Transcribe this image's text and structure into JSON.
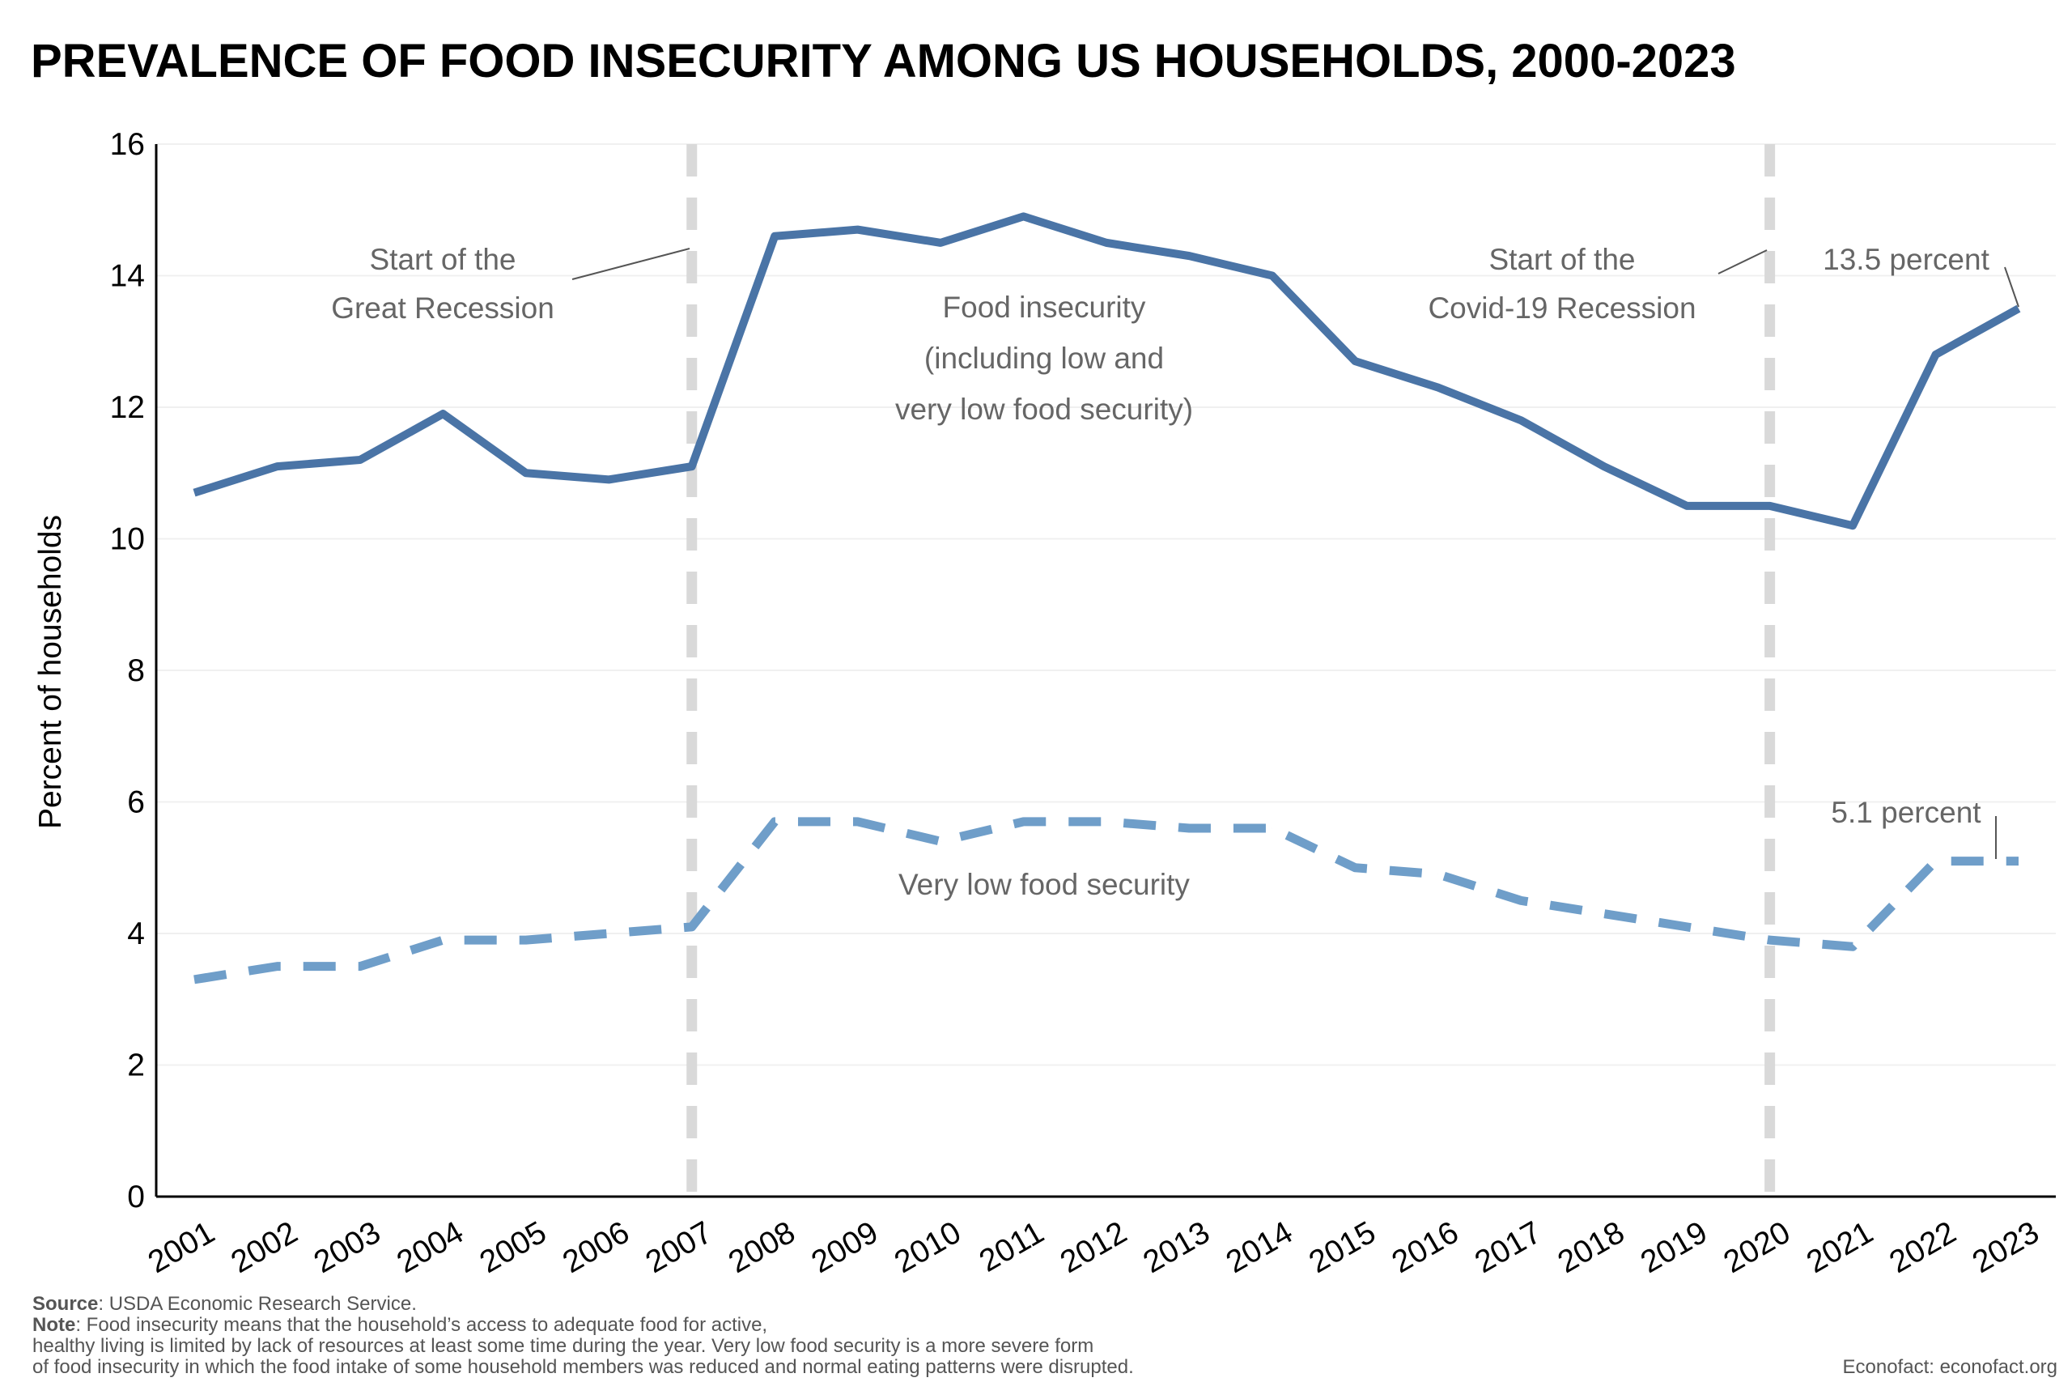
{
  "chart_data": {
    "type": "line",
    "title": "PREVALENCE OF FOOD INSECURITY AMONG US HOUSEHOLDS, 2000-2023",
    "xlabel": "",
    "ylabel": "Percent of households",
    "ylim": [
      0,
      16
    ],
    "yticks": [
      "0",
      "2",
      "4",
      "6",
      "8",
      "10",
      "12",
      "14",
      "16"
    ],
    "grid": "horizontal, light",
    "categories": [
      "2001",
      "2002",
      "2003",
      "2004",
      "2005",
      "2006",
      "2007",
      "2008",
      "2009",
      "2010",
      "2011",
      "2012",
      "2013",
      "2014",
      "2015",
      "2016",
      "2017",
      "2018",
      "2019",
      "2020",
      "2021",
      "2022",
      "2023"
    ],
    "series": [
      {
        "label": [
          "Food insecurity",
          "(including low and",
          "very low food security)"
        ],
        "style": "solid",
        "color": "#4a74a6",
        "values": [
          10.7,
          11.1,
          11.2,
          11.9,
          11.0,
          10.9,
          11.1,
          14.6,
          14.7,
          14.5,
          14.9,
          14.5,
          14.3,
          14.0,
          12.7,
          12.3,
          11.8,
          11.1,
          10.5,
          10.5,
          10.2,
          12.8,
          13.5
        ]
      },
      {
        "label": [
          "Very low food security"
        ],
        "style": "dashed",
        "color": "#6f9ec9",
        "values": [
          3.3,
          3.5,
          3.5,
          3.9,
          3.9,
          4.0,
          4.1,
          5.7,
          5.7,
          5.4,
          5.7,
          5.7,
          5.6,
          5.6,
          5.0,
          4.9,
          4.5,
          4.3,
          4.1,
          3.9,
          3.8,
          5.1,
          5.1
        ]
      }
    ],
    "recession_lines": [
      {
        "year": "2007",
        "label": [
          "Start of the",
          "Great Recession"
        ]
      },
      {
        "year": "2020",
        "label": [
          "Start of the",
          "Covid-19 Recession"
        ]
      }
    ],
    "recession_color": "#d9d9d9",
    "end_labels": [
      "13.5 percent",
      "5.1 percent"
    ]
  },
  "footer": {
    "source_label": "Source",
    "source_text": ": USDA Economic Research Service.",
    "note_label": "Note",
    "note_line1": ": Food insecurity means that the household’s access to adequate food for active,",
    "note_line2": "healthy living is limited by lack of resources at least some time during the year. Very low food security is a more severe form",
    "note_line3": "of food insecurity in which the food intake of some household members was reduced and normal eating patterns were disrupted.",
    "credit": "Econofact: econofact.org"
  }
}
